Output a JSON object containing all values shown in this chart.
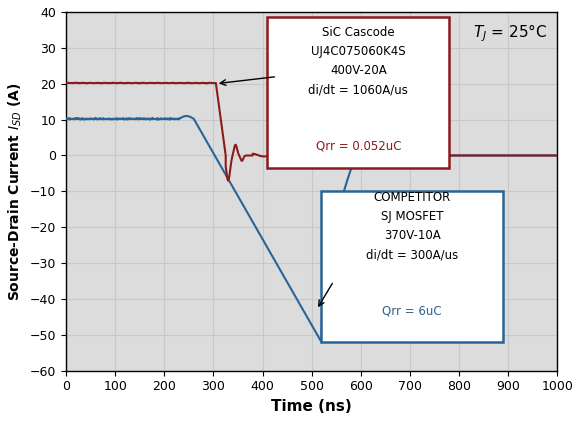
{
  "xlabel": "Time (ns)",
  "ylabel": "Source-Drain Current $I_{SD}$ (A)",
  "xlim": [
    0,
    1000
  ],
  "ylim": [
    -60,
    40
  ],
  "yticks": [
    -60,
    -50,
    -40,
    -30,
    -20,
    -10,
    0,
    10,
    20,
    30,
    40
  ],
  "xticks": [
    0,
    100,
    200,
    300,
    400,
    500,
    600,
    700,
    800,
    900,
    1000
  ],
  "grid_color": "#c8c8c8",
  "bg_color": "#dcdcdc",
  "sic_color": "#8b1a1a",
  "comp_color": "#2a6496",
  "box_sic_edge": "#8b1a1a",
  "box_comp_edge": "#2a6496",
  "sic_box_black": "SiC Cascode\nUJ4C075060K4S\n400V-20A\ndi/dt = 1060A/us",
  "sic_box_red": "Qrr = 0.052uC",
  "comp_box_black": "COMPETITOR\nSJ MOSFET\n370V-10A\ndi/dt = 300A/us",
  "comp_box_red": "Qrr = 6uC",
  "TJ_text": "$T_J$ = 25°C",
  "figsize": [
    5.8,
    4.21
  ],
  "dpi": 100
}
